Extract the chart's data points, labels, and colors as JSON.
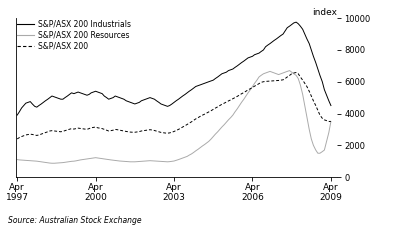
{
  "title": "",
  "ylabel": "index",
  "source": "Source: Australian Stock Exchange",
  "xlim_start": 1997.2,
  "xlim_end": 2009.5,
  "ylim": [
    0,
    10000
  ],
  "yticks": [
    0,
    2000,
    4000,
    6000,
    8000,
    10000
  ],
  "xtick_labels": [
    "Apr\n1997",
    "Apr\n2000",
    "Apr\n2003",
    "Apr\n2006",
    "Apr\n2009"
  ],
  "xtick_positions": [
    1997.25,
    2000.25,
    2003.25,
    2006.25,
    2009.25
  ],
  "legend": [
    {
      "label": "S&P/ASX 200 Industrials",
      "color": "#000000",
      "linestyle": "solid"
    },
    {
      "label": "S&P/ASX 200 Resources",
      "color": "#aaaaaa",
      "linestyle": "solid"
    },
    {
      "label": "S&P/ASX 200",
      "color": "#000000",
      "linestyle": "dashed"
    }
  ],
  "industrials_x": [
    1997.25,
    1997.33,
    1997.42,
    1997.5,
    1997.58,
    1997.67,
    1997.75,
    1997.83,
    1997.92,
    1998.0,
    1998.08,
    1998.17,
    1998.25,
    1998.33,
    1998.42,
    1998.5,
    1998.58,
    1998.67,
    1998.75,
    1998.83,
    1998.92,
    1999.0,
    1999.08,
    1999.17,
    1999.25,
    1999.33,
    1999.42,
    1999.5,
    1999.58,
    1999.67,
    1999.75,
    1999.83,
    1999.92,
    2000.0,
    2000.08,
    2000.17,
    2000.25,
    2000.33,
    2000.42,
    2000.5,
    2000.58,
    2000.67,
    2000.75,
    2000.83,
    2000.92,
    2001.0,
    2001.08,
    2001.17,
    2001.25,
    2001.33,
    2001.42,
    2001.5,
    2001.58,
    2001.67,
    2001.75,
    2001.83,
    2001.92,
    2002.0,
    2002.08,
    2002.17,
    2002.25,
    2002.33,
    2002.42,
    2002.5,
    2002.58,
    2002.67,
    2002.75,
    2002.83,
    2002.92,
    2003.0,
    2003.08,
    2003.17,
    2003.25,
    2003.33,
    2003.42,
    2003.5,
    2003.58,
    2003.67,
    2003.75,
    2003.83,
    2003.92,
    2004.0,
    2004.08,
    2004.17,
    2004.25,
    2004.33,
    2004.42,
    2004.5,
    2004.58,
    2004.67,
    2004.75,
    2004.83,
    2004.92,
    2005.0,
    2005.08,
    2005.17,
    2005.25,
    2005.33,
    2005.42,
    2005.5,
    2005.58,
    2005.67,
    2005.75,
    2005.83,
    2005.92,
    2006.0,
    2006.08,
    2006.17,
    2006.25,
    2006.33,
    2006.42,
    2006.5,
    2006.58,
    2006.67,
    2006.75,
    2006.83,
    2006.92,
    2007.0,
    2007.08,
    2007.17,
    2007.25,
    2007.33,
    2007.42,
    2007.5,
    2007.58,
    2007.67,
    2007.75,
    2007.83,
    2007.92,
    2008.0,
    2008.08,
    2008.17,
    2008.25,
    2008.33,
    2008.42,
    2008.5,
    2008.58,
    2008.67,
    2008.75,
    2008.83,
    2008.92,
    2009.0,
    2009.17,
    2009.25
  ],
  "industrials_y": [
    3900,
    4100,
    4350,
    4500,
    4650,
    4700,
    4750,
    4600,
    4450,
    4400,
    4500,
    4600,
    4700,
    4800,
    4900,
    5000,
    5100,
    5050,
    5000,
    4950,
    4900,
    4900,
    5000,
    5100,
    5200,
    5300,
    5250,
    5300,
    5350,
    5300,
    5250,
    5200,
    5150,
    5200,
    5300,
    5350,
    5400,
    5350,
    5300,
    5250,
    5100,
    5000,
    4900,
    4950,
    5000,
    5100,
    5050,
    5000,
    4950,
    4900,
    4800,
    4750,
    4700,
    4650,
    4600,
    4650,
    4700,
    4800,
    4850,
    4900,
    4950,
    5000,
    4950,
    4900,
    4800,
    4700,
    4600,
    4550,
    4500,
    4450,
    4500,
    4600,
    4700,
    4800,
    4900,
    5000,
    5100,
    5200,
    5300,
    5400,
    5500,
    5600,
    5700,
    5750,
    5800,
    5850,
    5900,
    5950,
    6000,
    6050,
    6100,
    6200,
    6300,
    6400,
    6500,
    6550,
    6600,
    6700,
    6750,
    6800,
    6900,
    7000,
    7100,
    7200,
    7300,
    7400,
    7500,
    7550,
    7600,
    7700,
    7750,
    7800,
    7900,
    8000,
    8200,
    8300,
    8400,
    8500,
    8600,
    8700,
    8800,
    8900,
    9000,
    9200,
    9400,
    9500,
    9600,
    9700,
    9750,
    9650,
    9500,
    9300,
    9000,
    8700,
    8400,
    8000,
    7600,
    7200,
    6800,
    6400,
    6000,
    5500,
    4800,
    4500
  ],
  "resources_x": [
    1997.25,
    1997.33,
    1997.42,
    1997.5,
    1997.58,
    1997.67,
    1997.75,
    1997.83,
    1997.92,
    1998.0,
    1998.08,
    1998.17,
    1998.25,
    1998.33,
    1998.42,
    1998.5,
    1998.58,
    1998.67,
    1998.75,
    1998.83,
    1998.92,
    1999.0,
    1999.08,
    1999.17,
    1999.25,
    1999.33,
    1999.42,
    1999.5,
    1999.58,
    1999.67,
    1999.75,
    1999.83,
    1999.92,
    2000.0,
    2000.08,
    2000.17,
    2000.25,
    2000.33,
    2000.42,
    2000.5,
    2000.58,
    2000.67,
    2000.75,
    2000.83,
    2000.92,
    2001.0,
    2001.08,
    2001.17,
    2001.25,
    2001.33,
    2001.42,
    2001.5,
    2001.58,
    2001.67,
    2001.75,
    2001.83,
    2001.92,
    2002.0,
    2002.08,
    2002.17,
    2002.25,
    2002.33,
    2002.42,
    2002.5,
    2002.58,
    2002.67,
    2002.75,
    2002.83,
    2002.92,
    2003.0,
    2003.08,
    2003.17,
    2003.25,
    2003.33,
    2003.42,
    2003.5,
    2003.58,
    2003.67,
    2003.75,
    2003.83,
    2003.92,
    2004.0,
    2004.08,
    2004.17,
    2004.25,
    2004.33,
    2004.42,
    2004.5,
    2004.58,
    2004.67,
    2004.75,
    2004.83,
    2004.92,
    2005.0,
    2005.08,
    2005.17,
    2005.25,
    2005.33,
    2005.42,
    2005.5,
    2005.58,
    2005.67,
    2005.75,
    2005.83,
    2005.92,
    2006.0,
    2006.08,
    2006.17,
    2006.25,
    2006.33,
    2006.42,
    2006.5,
    2006.58,
    2006.67,
    2006.75,
    2006.83,
    2006.92,
    2007.0,
    2007.08,
    2007.17,
    2007.25,
    2007.33,
    2007.42,
    2007.5,
    2007.58,
    2007.67,
    2007.75,
    2007.83,
    2007.92,
    2008.0,
    2008.08,
    2008.17,
    2008.25,
    2008.33,
    2008.42,
    2008.5,
    2008.58,
    2008.67,
    2008.75,
    2008.83,
    2008.92,
    2009.0,
    2009.17,
    2009.25
  ],
  "resources_y": [
    1100,
    1080,
    1070,
    1060,
    1050,
    1040,
    1030,
    1020,
    1010,
    1000,
    980,
    960,
    940,
    920,
    900,
    880,
    870,
    870,
    880,
    890,
    900,
    910,
    930,
    950,
    970,
    990,
    1000,
    1020,
    1050,
    1080,
    1100,
    1120,
    1140,
    1160,
    1180,
    1200,
    1220,
    1200,
    1180,
    1160,
    1140,
    1120,
    1100,
    1080,
    1060,
    1040,
    1020,
    1010,
    1000,
    990,
    980,
    970,
    960,
    960,
    960,
    970,
    980,
    990,
    1000,
    1010,
    1020,
    1030,
    1020,
    1010,
    1000,
    990,
    980,
    970,
    960,
    960,
    970,
    990,
    1010,
    1050,
    1100,
    1150,
    1200,
    1250,
    1300,
    1380,
    1460,
    1550,
    1650,
    1750,
    1850,
    1950,
    2050,
    2150,
    2250,
    2400,
    2550,
    2700,
    2850,
    3000,
    3150,
    3300,
    3450,
    3600,
    3750,
    3900,
    4100,
    4300,
    4500,
    4700,
    4900,
    5100,
    5300,
    5500,
    5700,
    5900,
    6100,
    6300,
    6400,
    6500,
    6550,
    6600,
    6650,
    6600,
    6550,
    6500,
    6450,
    6500,
    6550,
    6600,
    6650,
    6700,
    6600,
    6500,
    6400,
    6200,
    5800,
    5200,
    4500,
    3800,
    3000,
    2400,
    2000,
    1700,
    1500,
    1500,
    1600,
    1700,
    2800,
    3500
  ],
  "asx200_x": [
    1997.25,
    1997.33,
    1997.42,
    1997.5,
    1997.58,
    1997.67,
    1997.75,
    1997.83,
    1997.92,
    1998.0,
    1998.08,
    1998.17,
    1998.25,
    1998.33,
    1998.42,
    1998.5,
    1998.58,
    1998.67,
    1998.75,
    1998.83,
    1998.92,
    1999.0,
    1999.08,
    1999.17,
    1999.25,
    1999.33,
    1999.42,
    1999.5,
    1999.58,
    1999.67,
    1999.75,
    1999.83,
    1999.92,
    2000.0,
    2000.08,
    2000.17,
    2000.25,
    2000.33,
    2000.42,
    2000.5,
    2000.58,
    2000.67,
    2000.75,
    2000.83,
    2000.92,
    2001.0,
    2001.08,
    2001.17,
    2001.25,
    2001.33,
    2001.42,
    2001.5,
    2001.58,
    2001.67,
    2001.75,
    2001.83,
    2001.92,
    2002.0,
    2002.08,
    2002.17,
    2002.25,
    2002.33,
    2002.42,
    2002.5,
    2002.58,
    2002.67,
    2002.75,
    2002.83,
    2002.92,
    2003.0,
    2003.08,
    2003.17,
    2003.25,
    2003.33,
    2003.42,
    2003.5,
    2003.58,
    2003.67,
    2003.75,
    2003.83,
    2003.92,
    2004.0,
    2004.08,
    2004.17,
    2004.25,
    2004.33,
    2004.42,
    2004.5,
    2004.58,
    2004.67,
    2004.75,
    2004.83,
    2004.92,
    2005.0,
    2005.08,
    2005.17,
    2005.25,
    2005.33,
    2005.42,
    2005.5,
    2005.58,
    2005.67,
    2005.75,
    2005.83,
    2005.92,
    2006.0,
    2006.08,
    2006.17,
    2006.25,
    2006.33,
    2006.42,
    2006.5,
    2006.58,
    2006.67,
    2006.75,
    2006.83,
    2006.92,
    2007.0,
    2007.08,
    2007.17,
    2007.25,
    2007.33,
    2007.42,
    2007.5,
    2007.58,
    2007.67,
    2007.75,
    2007.83,
    2007.92,
    2008.0,
    2008.08,
    2008.17,
    2008.25,
    2008.33,
    2008.42,
    2008.5,
    2008.58,
    2008.67,
    2008.75,
    2008.83,
    2008.92,
    2009.0,
    2009.17,
    2009.25
  ],
  "asx200_y": [
    2400,
    2480,
    2550,
    2600,
    2650,
    2680,
    2700,
    2680,
    2650,
    2620,
    2650,
    2700,
    2750,
    2800,
    2850,
    2900,
    2920,
    2900,
    2880,
    2860,
    2850,
    2880,
    2920,
    2960,
    3000,
    3050,
    3020,
    3050,
    3080,
    3060,
    3040,
    3020,
    3000,
    3050,
    3100,
    3130,
    3150,
    3100,
    3070,
    3050,
    3000,
    2950,
    2900,
    2920,
    2950,
    3000,
    2980,
    2950,
    2920,
    2900,
    2870,
    2850,
    2830,
    2820,
    2820,
    2840,
    2860,
    2900,
    2920,
    2940,
    2960,
    2980,
    2960,
    2930,
    2890,
    2850,
    2810,
    2790,
    2770,
    2760,
    2780,
    2820,
    2870,
    2930,
    3000,
    3070,
    3150,
    3230,
    3310,
    3390,
    3480,
    3570,
    3660,
    3740,
    3820,
    3890,
    3960,
    4030,
    4100,
    4180,
    4260,
    4340,
    4420,
    4500,
    4580,
    4650,
    4720,
    4790,
    4860,
    4930,
    5000,
    5080,
    5160,
    5240,
    5320,
    5400,
    5490,
    5560,
    5640,
    5720,
    5800,
    5880,
    5960,
    6000,
    6020,
    6030,
    6040,
    6050,
    6060,
    6070,
    6080,
    6100,
    6120,
    6200,
    6300,
    6400,
    6500,
    6550,
    6580,
    6500,
    6300,
    6100,
    5900,
    5700,
    5400,
    5100,
    4800,
    4500,
    4200,
    3900,
    3700,
    3600,
    3500,
    3500
  ]
}
